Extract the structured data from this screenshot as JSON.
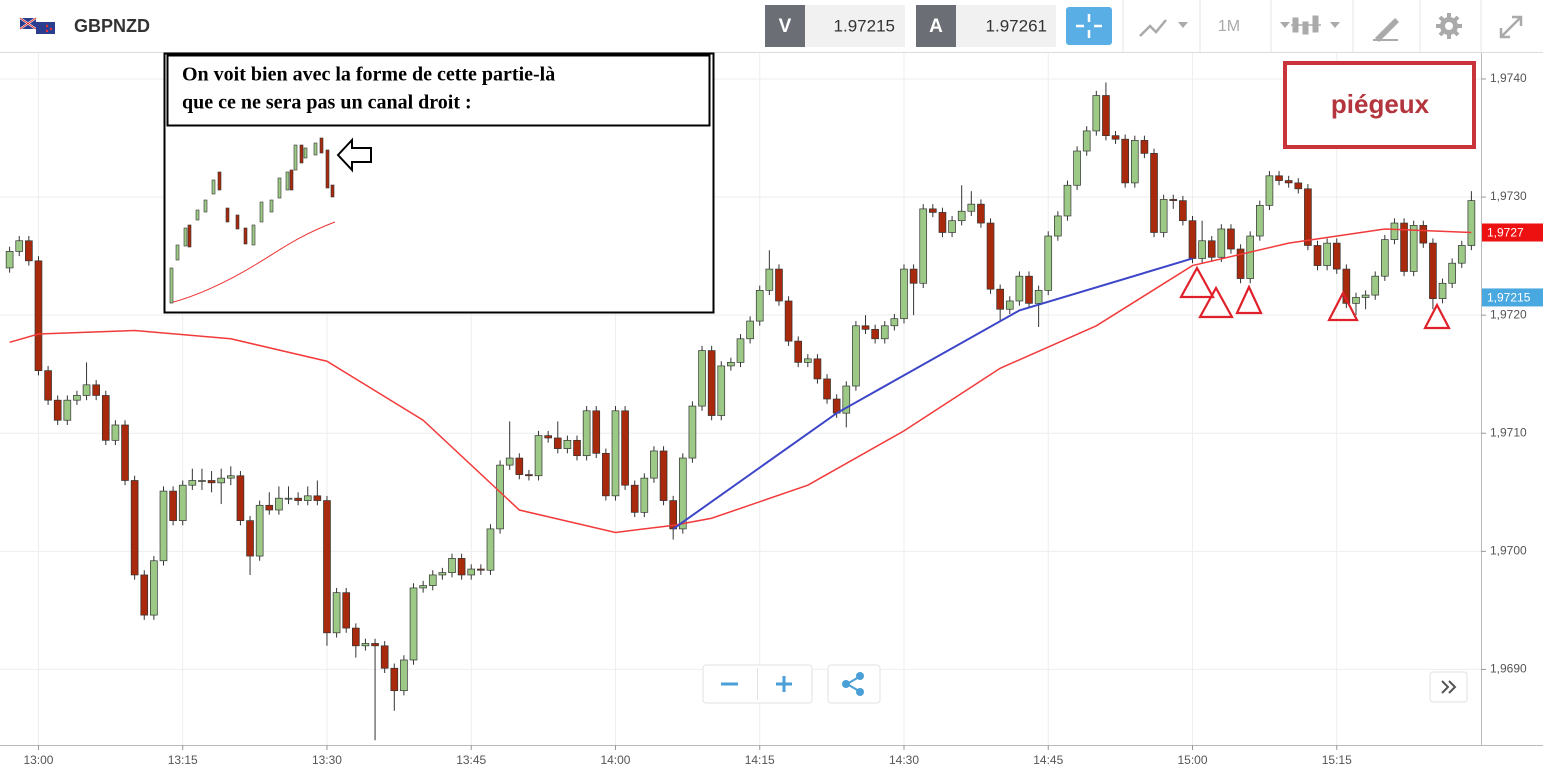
{
  "toolbar": {
    "symbol": "GBPNZD",
    "bid_label": "V",
    "bid": "1.97215",
    "ask_label": "A",
    "ask": "1.97261",
    "timeframe": "1M"
  },
  "note": {
    "lines": [
      "On voit bien avec la forme de cette partie-là",
      "que ce ne sera pas un canal droit :"
    ]
  },
  "tag": "piégeux",
  "chart_data": {
    "type": "candlestick",
    "up_color": "#9cc985",
    "down_color": "#a8290c",
    "xlim": [
      "12:56",
      "15:30"
    ],
    "xticks": [
      "13:00",
      "13:15",
      "13:30",
      "13:45",
      "14:00",
      "14:15",
      "14:30",
      "14:45",
      "15:00",
      "15:15"
    ],
    "ylim": [
      1.96836,
      1.97422
    ],
    "yticks": [
      {
        "value": 1.969,
        "label": "1,9690"
      },
      {
        "value": 1.97,
        "label": "1,9700"
      },
      {
        "value": 1.971,
        "label": "1,9710"
      },
      {
        "value": 1.972,
        "label": "1,9720"
      },
      {
        "value": 1.973,
        "label": "1,9730"
      },
      {
        "value": 1.974,
        "label": "1,9740"
      }
    ],
    "grid": true,
    "candles": [
      [
        "12:57",
        1.9724,
        1.97258,
        1.97236,
        1.97254
      ],
      [
        "12:58",
        1.97254,
        1.97267,
        1.9725,
        1.97263
      ],
      [
        "12:59",
        1.97263,
        1.97267,
        1.97242,
        1.97246
      ],
      [
        "13:00",
        1.97246,
        1.9725,
        1.97149,
        1.97153
      ],
      [
        "13:01",
        1.97153,
        1.97157,
        1.97124,
        1.97128
      ],
      [
        "13:02",
        1.97128,
        1.97132,
        1.97107,
        1.97111
      ],
      [
        "13:03",
        1.97111,
        1.97132,
        1.97107,
        1.97128
      ],
      [
        "13:04",
        1.97128,
        1.97136,
        1.97124,
        1.97132
      ],
      [
        "13:05",
        1.97132,
        1.9716,
        1.97128,
        1.97141
      ],
      [
        "13:06",
        1.97141,
        1.97145,
        1.97128,
        1.97132
      ],
      [
        "13:07",
        1.97132,
        1.97136,
        1.9709,
        1.97094
      ],
      [
        "13:08",
        1.97094,
        1.97111,
        1.9709,
        1.97107
      ],
      [
        "13:09",
        1.97107,
        1.97111,
        1.97056,
        1.9706
      ],
      [
        "13:10",
        1.9706,
        1.97064,
        1.96976,
        1.9698
      ],
      [
        "13:11",
        1.9698,
        1.96984,
        1.96942,
        1.96946
      ],
      [
        "13:12",
        1.96946,
        1.96996,
        1.96942,
        1.96992
      ],
      [
        "13:13",
        1.96992,
        1.97055,
        1.96988,
        1.97051
      ],
      [
        "13:14",
        1.97051,
        1.97055,
        1.97022,
        1.97026
      ],
      [
        "13:15",
        1.97026,
        1.9706,
        1.97022,
        1.97056
      ],
      [
        "13:16",
        1.97056,
        1.9707,
        1.97052,
        1.9706
      ],
      [
        "13:17",
        1.9706,
        1.9707,
        1.97052,
        1.9706
      ],
      [
        "13:18",
        1.9706,
        1.97068,
        1.9705,
        1.97058
      ],
      [
        "13:19",
        1.97058,
        1.9707,
        1.9704,
        1.97062
      ],
      [
        "13:20",
        1.97062,
        1.97072,
        1.97056,
        1.97064
      ],
      [
        "13:21",
        1.97064,
        1.97068,
        1.97022,
        1.97026
      ],
      [
        "13:22",
        1.97026,
        1.9703,
        1.9698,
        1.96996
      ],
      [
        "13:23",
        1.96996,
        1.97043,
        1.96992,
        1.97039
      ],
      [
        "13:24",
        1.97039,
        1.9705,
        1.97031,
        1.97035
      ],
      [
        "13:25",
        1.97035,
        1.97055,
        1.97031,
        1.97045
      ],
      [
        "13:26",
        1.97045,
        1.97055,
        1.9704,
        1.97045
      ],
      [
        "13:27",
        1.97045,
        1.9705,
        1.97039,
        1.97043
      ],
      [
        "13:28",
        1.97043,
        1.97055,
        1.97039,
        1.97047
      ],
      [
        "13:29",
        1.97047,
        1.9706,
        1.97039,
        1.97043
      ],
      [
        "13:30",
        1.97043,
        1.97047,
        1.9692,
        1.96931
      ],
      [
        "13:31",
        1.96931,
        1.96969,
        1.96927,
        1.96965
      ],
      [
        "13:32",
        1.96965,
        1.96969,
        1.96931,
        1.96935
      ],
      [
        "13:33",
        1.96935,
        1.96939,
        1.9691,
        1.9692
      ],
      [
        "13:34",
        1.9692,
        1.96926,
        1.96916,
        1.96922
      ],
      [
        "13:35",
        1.96922,
        1.96926,
        1.9684,
        1.9692
      ],
      [
        "13:36",
        1.9692,
        1.96924,
        1.96897,
        1.96901
      ],
      [
        "13:37",
        1.96901,
        1.96905,
        1.96865,
        1.96882
      ],
      [
        "13:38",
        1.96882,
        1.96912,
        1.96878,
        1.96908
      ],
      [
        "13:39",
        1.96908,
        1.96973,
        1.96904,
        1.96969
      ],
      [
        "13:40",
        1.96969,
        1.96975,
        1.96965,
        1.96971
      ],
      [
        "13:41",
        1.96971,
        1.96984,
        1.96967,
        1.9698
      ],
      [
        "13:42",
        1.9698,
        1.96986,
        1.96976,
        1.96982
      ],
      [
        "13:43",
        1.96982,
        1.96998,
        1.96978,
        1.96994
      ],
      [
        "13:44",
        1.96994,
        1.96998,
        1.96976,
        1.9698
      ],
      [
        "13:45",
        1.9698,
        1.96989,
        1.96976,
        1.96985
      ],
      [
        "13:46",
        1.96985,
        1.96989,
        1.9698,
        1.96984
      ],
      [
        "13:47",
        1.96984,
        1.97023,
        1.9698,
        1.97019
      ],
      [
        "13:48",
        1.97019,
        1.97077,
        1.97015,
        1.97073
      ],
      [
        "13:49",
        1.97073,
        1.9711,
        1.97069,
        1.97079
      ],
      [
        "13:50",
        1.97079,
        1.97083,
        1.97061,
        1.97065
      ],
      [
        "13:51",
        1.97065,
        1.97069,
        1.9706,
        1.97064
      ],
      [
        "13:52",
        1.97064,
        1.97102,
        1.9706,
        1.97098
      ],
      [
        "13:53",
        1.97098,
        1.97102,
        1.97092,
        1.97096
      ],
      [
        "13:54",
        1.97096,
        1.9711,
        1.97083,
        1.97087
      ],
      [
        "13:55",
        1.97087,
        1.97098,
        1.97083,
        1.97094
      ],
      [
        "13:56",
        1.97094,
        1.97098,
        1.97077,
        1.97081
      ],
      [
        "13:57",
        1.97081,
        1.97123,
        1.97077,
        1.97119
      ],
      [
        "13:58",
        1.97119,
        1.97123,
        1.97079,
        1.97083
      ],
      [
        "13:59",
        1.97083,
        1.97087,
        1.97043,
        1.97047
      ],
      [
        "14:00",
        1.97047,
        1.97123,
        1.97043,
        1.97119
      ],
      [
        "14:01",
        1.97119,
        1.97123,
        1.97052,
        1.97056
      ],
      [
        "14:02",
        1.97056,
        1.9706,
        1.97029,
        1.97033
      ],
      [
        "14:03",
        1.97033,
        1.97066,
        1.97029,
        1.97062
      ],
      [
        "14:04",
        1.97062,
        1.97089,
        1.97058,
        1.97085
      ],
      [
        "14:05",
        1.97085,
        1.97089,
        1.97039,
        1.97043
      ],
      [
        "14:06",
        1.97043,
        1.97047,
        1.9701,
        1.97019
      ],
      [
        "14:07",
        1.97019,
        1.97083,
        1.97015,
        1.97079
      ],
      [
        "14:08",
        1.97079,
        1.97127,
        1.97075,
        1.97123
      ],
      [
        "14:09",
        1.97123,
        1.97174,
        1.97119,
        1.9717
      ],
      [
        "14:10",
        1.9717,
        1.97174,
        1.97111,
        1.97115
      ],
      [
        "14:11",
        1.97115,
        1.97161,
        1.97111,
        1.97157
      ],
      [
        "14:12",
        1.97157,
        1.97164,
        1.97153,
        1.9716
      ],
      [
        "14:13",
        1.9716,
        1.97184,
        1.97156,
        1.9718
      ],
      [
        "14:14",
        1.9718,
        1.97199,
        1.97176,
        1.97195
      ],
      [
        "14:15",
        1.97195,
        1.97225,
        1.97191,
        1.97221
      ],
      [
        "14:16",
        1.97221,
        1.97255,
        1.97217,
        1.97239
      ],
      [
        "14:17",
        1.97239,
        1.97243,
        1.97208,
        1.97212
      ],
      [
        "14:18",
        1.97212,
        1.97216,
        1.97174,
        1.97178
      ],
      [
        "14:19",
        1.97178,
        1.97182,
        1.97156,
        1.9716
      ],
      [
        "14:20",
        1.9716,
        1.97167,
        1.97156,
        1.97163
      ],
      [
        "14:21",
        1.97163,
        1.97167,
        1.97142,
        1.97146
      ],
      [
        "14:22",
        1.97146,
        1.9715,
        1.97125,
        1.97129
      ],
      [
        "14:23",
        1.97129,
        1.97133,
        1.97113,
        1.97117
      ],
      [
        "14:24",
        1.97117,
        1.97144,
        1.97105,
        1.9714
      ],
      [
        "14:25",
        1.9714,
        1.97195,
        1.97136,
        1.97191
      ],
      [
        "14:26",
        1.97191,
        1.972,
        1.97184,
        1.97188
      ],
      [
        "14:27",
        1.97188,
        1.97192,
        1.97176,
        1.9718
      ],
      [
        "14:28",
        1.9718,
        1.97195,
        1.97176,
        1.97191
      ],
      [
        "14:29",
        1.97191,
        1.97201,
        1.97187,
        1.97197
      ],
      [
        "14:30",
        1.97197,
        1.97243,
        1.97193,
        1.97239
      ],
      [
        "14:31",
        1.97239,
        1.97243,
        1.972,
        1.97227
      ],
      [
        "14:32",
        1.97227,
        1.97294,
        1.97223,
        1.9729
      ],
      [
        "14:33",
        1.9729,
        1.97294,
        1.97283,
        1.97287
      ],
      [
        "14:34",
        1.97287,
        1.97291,
        1.97266,
        1.9727
      ],
      [
        "14:35",
        1.9727,
        1.97284,
        1.97266,
        1.9728
      ],
      [
        "14:36",
        1.9728,
        1.9731,
        1.97276,
        1.97288
      ],
      [
        "14:37",
        1.97288,
        1.97305,
        1.97284,
        1.97294
      ],
      [
        "14:38",
        1.97294,
        1.97298,
        1.97274,
        1.97278
      ],
      [
        "14:39",
        1.97278,
        1.97282,
        1.97218,
        1.97222
      ],
      [
        "14:40",
        1.97222,
        1.97226,
        1.97195,
        1.97205
      ],
      [
        "14:41",
        1.97205,
        1.97216,
        1.97201,
        1.97212
      ],
      [
        "14:42",
        1.97212,
        1.97237,
        1.97208,
        1.97233
      ],
      [
        "14:43",
        1.97233,
        1.97237,
        1.97206,
        1.9721
      ],
      [
        "14:44",
        1.9721,
        1.97225,
        1.9719,
        1.97221
      ],
      [
        "14:45",
        1.97221,
        1.97271,
        1.97217,
        1.97267
      ],
      [
        "14:46",
        1.97267,
        1.97288,
        1.97263,
        1.97284
      ],
      [
        "14:47",
        1.97284,
        1.97314,
        1.9728,
        1.9731
      ],
      [
        "14:48",
        1.9731,
        1.97343,
        1.97306,
        1.97339
      ],
      [
        "14:49",
        1.97339,
        1.9736,
        1.97335,
        1.97356
      ],
      [
        "14:50",
        1.97356,
        1.9739,
        1.97352,
        1.97386
      ],
      [
        "14:51",
        1.97386,
        1.97397,
        1.97348,
        1.97352
      ],
      [
        "14:52",
        1.97352,
        1.97356,
        1.97345,
        1.97349
      ],
      [
        "14:53",
        1.97349,
        1.97353,
        1.97308,
        1.97312
      ],
      [
        "14:54",
        1.97312,
        1.97352,
        1.97308,
        1.97348
      ],
      [
        "14:55",
        1.97348,
        1.97352,
        1.97333,
        1.97337
      ],
      [
        "14:56",
        1.97337,
        1.97341,
        1.97266,
        1.9727
      ],
      [
        "14:57",
        1.9727,
        1.97302,
        1.97266,
        1.97298
      ],
      [
        "14:58",
        1.97298,
        1.97302,
        1.9729,
        1.97297
      ],
      [
        "14:59",
        1.97297,
        1.97301,
        1.97276,
        1.9728
      ],
      [
        "15:00",
        1.9728,
        1.97284,
        1.97244,
        1.97248
      ],
      [
        "15:01",
        1.97248,
        1.9728,
        1.97244,
        1.97263
      ],
      [
        "15:02",
        1.97263,
        1.97267,
        1.97245,
        1.97249
      ],
      [
        "15:03",
        1.97249,
        1.97277,
        1.97245,
        1.97273
      ],
      [
        "15:04",
        1.97273,
        1.97277,
        1.97252,
        1.97256
      ],
      [
        "15:05",
        1.97256,
        1.9726,
        1.97227,
        1.97231
      ],
      [
        "15:06",
        1.97231,
        1.97271,
        1.97227,
        1.97267
      ],
      [
        "15:07",
        1.97267,
        1.97297,
        1.97263,
        1.97293
      ],
      [
        "15:08",
        1.97293,
        1.97322,
        1.97289,
        1.97318
      ],
      [
        "15:09",
        1.97318,
        1.97322,
        1.9731,
        1.97314
      ],
      [
        "15:10",
        1.97314,
        1.97318,
        1.97308,
        1.97312
      ],
      [
        "15:11",
        1.97312,
        1.97316,
        1.97303,
        1.97307
      ],
      [
        "15:12",
        1.97307,
        1.97311,
        1.97255,
        1.97259
      ],
      [
        "15:13",
        1.97259,
        1.97263,
        1.97238,
        1.97242
      ],
      [
        "15:14",
        1.97242,
        1.97265,
        1.97238,
        1.97261
      ],
      [
        "15:15",
        1.97261,
        1.97265,
        1.97235,
        1.97239
      ],
      [
        "15:16",
        1.97239,
        1.97243,
        1.97206,
        1.9721
      ],
      [
        "15:17",
        1.9721,
        1.97219,
        1.972,
        1.97215
      ],
      [
        "15:18",
        1.97215,
        1.97221,
        1.97205,
        1.97217
      ],
      [
        "15:19",
        1.97217,
        1.97237,
        1.97213,
        1.97233
      ],
      [
        "15:20",
        1.97233,
        1.97268,
        1.97229,
        1.97264
      ],
      [
        "15:21",
        1.97264,
        1.97282,
        1.9726,
        1.97278
      ],
      [
        "15:22",
        1.97278,
        1.97282,
        1.97233,
        1.97237
      ],
      [
        "15:23",
        1.97237,
        1.9728,
        1.97233,
        1.97276
      ],
      [
        "15:24",
        1.97276,
        1.9728,
        1.97257,
        1.97261
      ],
      [
        "15:25",
        1.97261,
        1.97265,
        1.97205,
        1.97214
      ],
      [
        "15:26",
        1.97214,
        1.97231,
        1.9721,
        1.97227
      ],
      [
        "15:27",
        1.97227,
        1.97248,
        1.97223,
        1.97244
      ],
      [
        "15:28",
        1.97244,
        1.97263,
        1.9724,
        1.97259
      ],
      [
        "15:29",
        1.97259,
        1.97305,
        1.97255,
        1.97297
      ]
    ],
    "moving_average": {
      "color": "#f23a3a",
      "x": [
        "12:57",
        "13:00",
        "13:10",
        "13:20",
        "13:30",
        "13:40",
        "13:50",
        "14:00",
        "14:06",
        "14:10",
        "14:20",
        "14:30",
        "14:40",
        "14:50",
        "15:00",
        "15:10",
        "15:20",
        "15:29"
      ],
      "values": [
        1.97177,
        1.97184,
        1.97187,
        1.9718,
        1.97161,
        1.97111,
        1.97035,
        1.97016,
        1.97022,
        1.97028,
        1.97056,
        1.97102,
        1.97155,
        1.97191,
        1.97242,
        1.97261,
        1.97273,
        1.9727
      ]
    },
    "trendline": {
      "color": "#3d46c8",
      "x": [
        "14:06",
        "14:23",
        "14:42",
        "15:00"
      ],
      "values": [
        1.97019,
        1.97117,
        1.97204,
        1.97248
      ]
    },
    "price_tags": [
      {
        "value": 1.9727,
        "label": "1,9727",
        "color": "#ee1111"
      },
      {
        "value": 1.97215,
        "label": "1,97215",
        "color": "#4aa8e0"
      }
    ]
  }
}
